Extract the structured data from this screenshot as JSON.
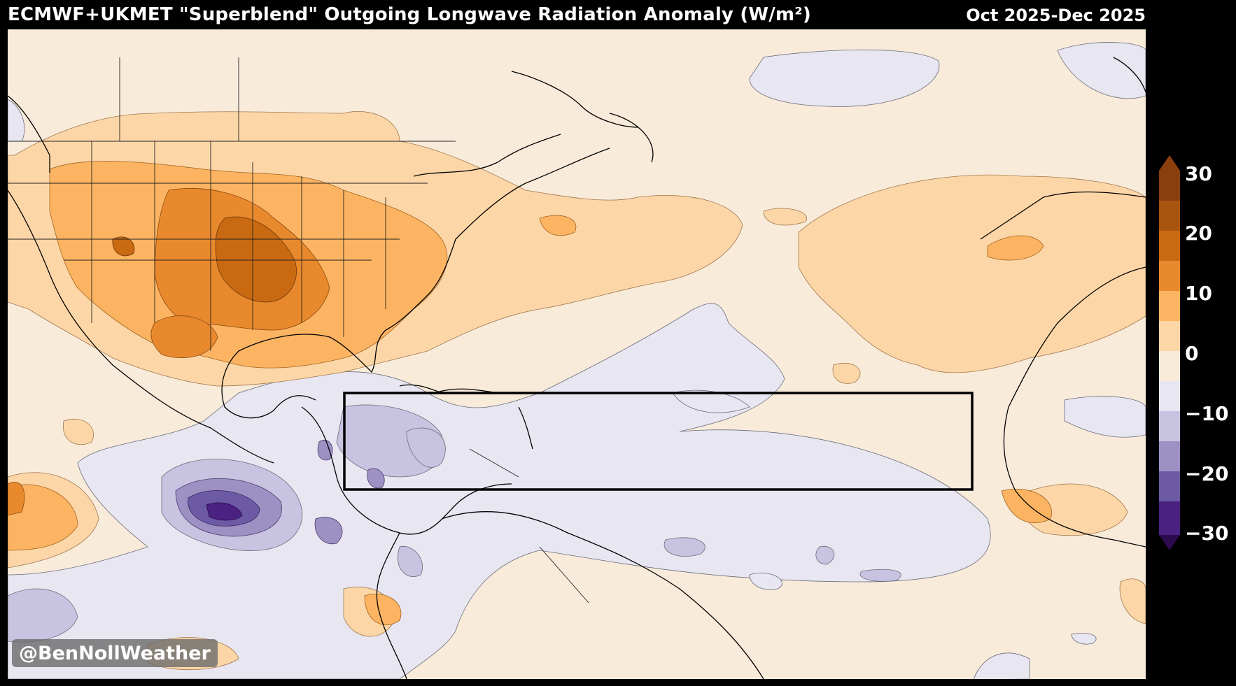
{
  "header": {
    "title": "ECMWF+UKMET \"Superblend\" Outgoing Longwave Radiation Anomaly (W/m²)",
    "date_range": "Oct 2025-Dec 2025"
  },
  "watermark": "@BenNollWeather",
  "colorbar": {
    "labels": [
      "30",
      "20",
      "10",
      "0",
      "−10",
      "−20",
      "−30"
    ],
    "levels": [
      -30,
      -25,
      -20,
      -15,
      -10,
      -5,
      0,
      5,
      10,
      15,
      20,
      25,
      30
    ],
    "colors": [
      "#2d0a4e",
      "#4b2182",
      "#6c5aa4",
      "#9d90c3",
      "#c8c3e0",
      "#e7e6f1",
      "#f8ebda",
      "#fdd6a7",
      "#fdb462",
      "#e9892d",
      "#c96a12",
      "#a85510",
      "#8a3f0d"
    ],
    "extend": "both"
  },
  "map": {
    "region": "Tropical Atlantic, Caribbean and North America",
    "box_outline_color": "#000000"
  }
}
